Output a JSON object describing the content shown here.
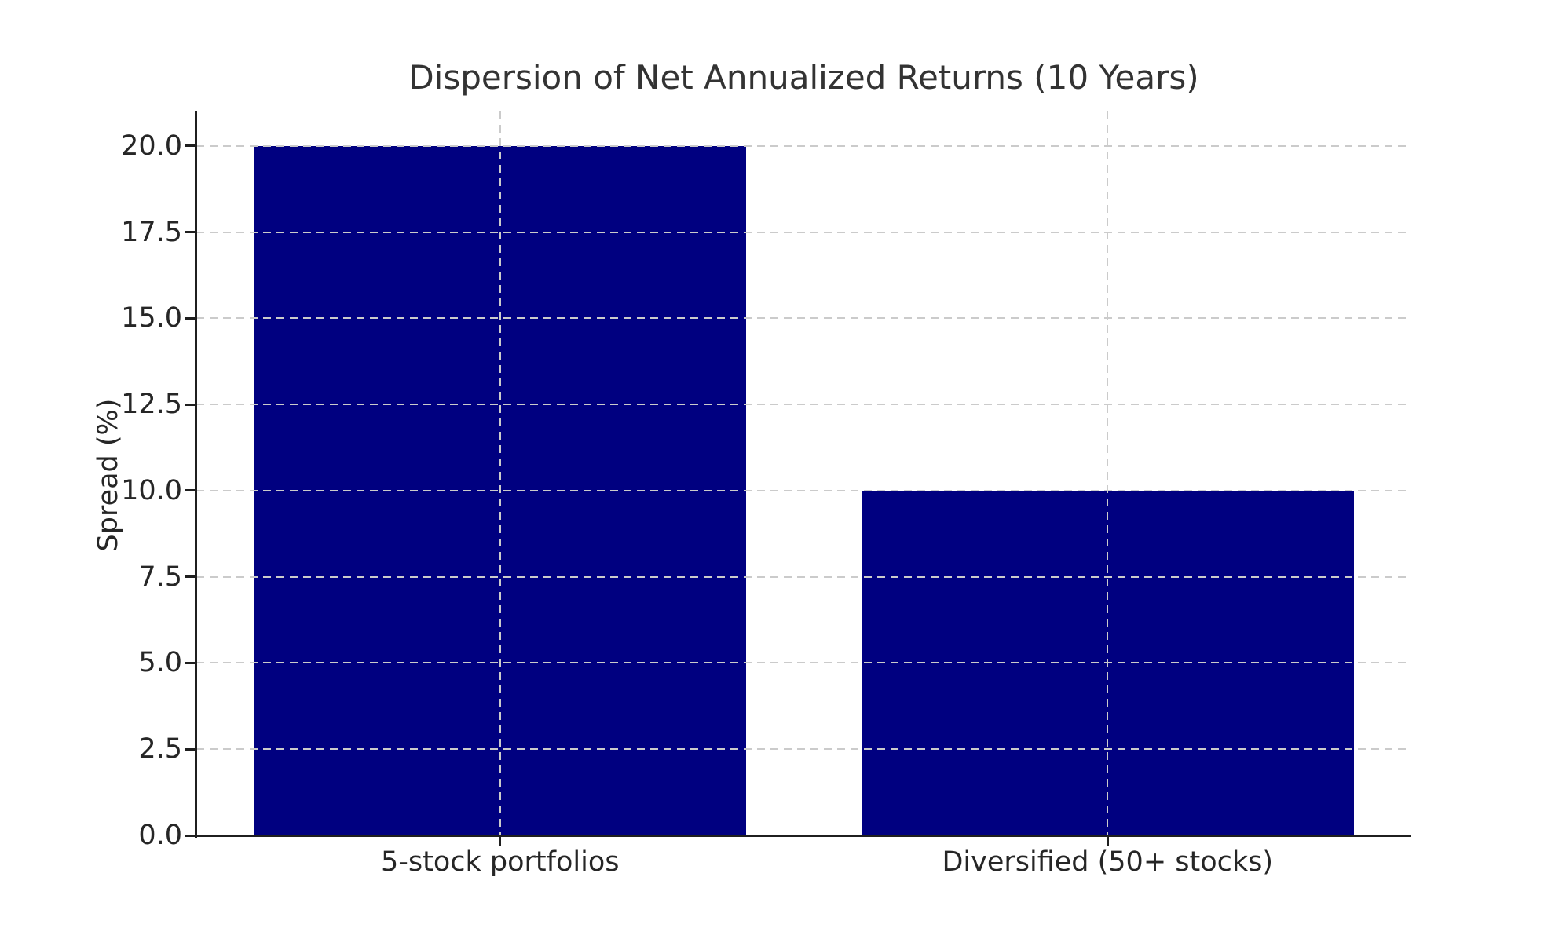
{
  "chart_data": {
    "type": "bar",
    "title": "Dispersion of Net Annualized Returns (10 Years)",
    "categories": [
      "5-stock portfolios",
      "Diversified (50+ stocks)"
    ],
    "values": [
      20.0,
      10.0
    ],
    "xlabel": "",
    "ylabel": "Spread (%)",
    "ylim": [
      0,
      21
    ],
    "yticks": [
      0.0,
      2.5,
      5.0,
      7.5,
      10.0,
      12.5,
      15.0,
      17.5,
      20.0
    ],
    "ytick_labels": [
      "0.0",
      "2.5",
      "5.0",
      "7.5",
      "10.0",
      "12.5",
      "15.0",
      "17.5",
      "20.0"
    ],
    "grid": true,
    "grid_style": "dashed",
    "grid_over_bars": true,
    "legend": false,
    "bar_color": "#000080",
    "grid_color": "#cbcbcb",
    "axis_color": "#1f1f1f",
    "text_color": "#262626",
    "title_color": "#333333",
    "background": "#ffffff"
  }
}
